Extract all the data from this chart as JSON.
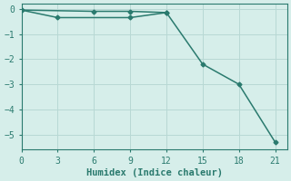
{
  "line1_x": [
    0,
    6,
    9,
    12,
    15,
    18,
    21
  ],
  "line1_y": [
    -0.05,
    -0.1,
    -0.1,
    -0.15,
    -2.2,
    -3.0,
    -5.3
  ],
  "line2_x": [
    0,
    3,
    9,
    12
  ],
  "line2_y": [
    -0.05,
    -0.35,
    -0.35,
    -0.15
  ],
  "line_color": "#2a7a6e",
  "bg_color": "#d6eeea",
  "grid_color": "#b8d8d4",
  "xlabel": "Humidex (Indice chaleur)",
  "xticks": [
    0,
    3,
    6,
    9,
    12,
    15,
    18,
    21
  ],
  "yticks": [
    0,
    -1,
    -2,
    -3,
    -4,
    -5
  ],
  "xlim": [
    0,
    22
  ],
  "ylim": [
    -5.6,
    0.2
  ]
}
